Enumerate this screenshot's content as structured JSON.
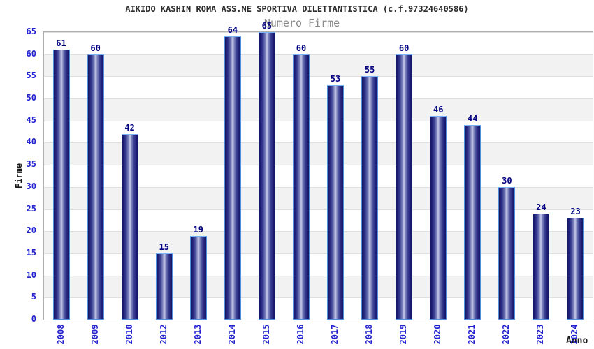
{
  "chart_data": {
    "type": "bar",
    "title": "AIKIDO KASHIN ROMA ASS.NE SPORTIVA DILETTANTISTICA (c.f.97324640586)",
    "subtitle": "Numero Firme",
    "xlabel": "Anno",
    "ylabel": "Firme",
    "categories": [
      "2008",
      "2009",
      "2010",
      "2012",
      "2013",
      "2014",
      "2015",
      "2016",
      "2017",
      "2018",
      "2019",
      "2020",
      "2021",
      "2022",
      "2023",
      "2024"
    ],
    "values": [
      61,
      60,
      42,
      15,
      19,
      64,
      65,
      60,
      53,
      55,
      60,
      46,
      44,
      30,
      24,
      23
    ],
    "ylim": [
      0,
      65
    ],
    "ytick_step": 5,
    "grid": "horizontal-bands-alternating",
    "legend": "none",
    "colors": {
      "title_color": "#2d2d2d",
      "subtitle_color": "#8a8a8a",
      "tick_color": "#2222d0",
      "value_color": "#000080",
      "axis_title_color": "#1a1a1a",
      "frame_color": "#b0b0b0",
      "grid_color": "#dedede",
      "band_gray": "#f2f2f2",
      "bar_dark": "#16165f",
      "bar_mid": "#7e84bd",
      "bar_light": "#c9cdea",
      "bar_border": "#4f8fe0",
      "bar_cap": "#79b2f5",
      "background": "#ffffff"
    }
  }
}
